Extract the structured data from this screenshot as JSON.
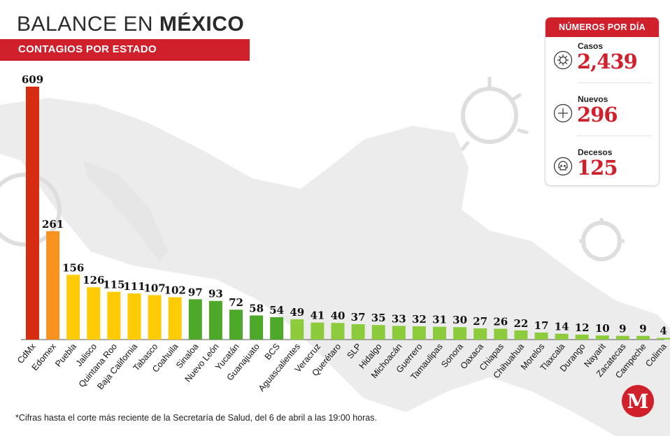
{
  "header": {
    "title_part1": "BALANCE EN ",
    "title_part2": "MÉXICO",
    "subtitle": "CONTAGIOS POR ESTADO"
  },
  "panel": {
    "title": "NÚMEROS POR DÍA",
    "stats": [
      {
        "label": "Casos",
        "value": "2,439",
        "icon": "virus-icon"
      },
      {
        "label": "Nuevos",
        "value": "296",
        "icon": "plus-circle-icon"
      },
      {
        "label": "Decesos",
        "value": "125",
        "icon": "skull-icon"
      }
    ]
  },
  "footnote": "*Cifras hasta el corte más reciente de la Secretaría de Salud, del 6 de abril a las 19:00 horas.",
  "logo": {
    "letter": "M"
  },
  "colors": {
    "brand_red": "#d0202b",
    "tier_dark_red": "#d62c10",
    "tier_orange": "#f7931e",
    "tier_yellow": "#ffcb05",
    "tier_dark_green": "#4ea82a",
    "tier_light_green": "#8ccc3c"
  },
  "chart_data": {
    "type": "bar",
    "title": "CONTAGIOS POR ESTADO",
    "categories": [
      "CdMx",
      "Edomex",
      "Puebla",
      "Jalisco",
      "Quintana Roo",
      "Baja California",
      "Tabasco",
      "Coahuila",
      "Sinaloa",
      "Nuevo León",
      "Yucatán",
      "Guanajuato",
      "BCS",
      "Aguascalientes",
      "Veracruz",
      "Querétaro",
      "SLP",
      "Hidalgo",
      "Michoacán",
      "Guerrero",
      "Tamaulipas",
      "Sonora",
      "Oaxaca",
      "Chiapas",
      "Chihuahua",
      "Morelos",
      "Tlaxcala",
      "Durango",
      "Nayarit",
      "Zacatecas",
      "Campeche",
      "Colima"
    ],
    "values": [
      609,
      261,
      156,
      126,
      115,
      111,
      107,
      102,
      97,
      93,
      72,
      58,
      54,
      49,
      41,
      40,
      37,
      35,
      33,
      32,
      31,
      30,
      27,
      26,
      22,
      17,
      14,
      12,
      10,
      9,
      9,
      4
    ],
    "value_labels": [
      "609",
      "261",
      "156",
      "126",
      "115",
      "111",
      "107",
      "102",
      "97",
      "93",
      "72",
      "58",
      "54",
      "49",
      "41",
      "40",
      "37",
      "35",
      "33",
      "32",
      "31",
      "30",
      "27",
      "26",
      "22",
      "17",
      "14",
      "12",
      "10",
      "9",
      "9",
      "4"
    ],
    "bar_colors": [
      "#d62c10",
      "#f7931e",
      "#ffcb05",
      "#ffcb05",
      "#ffcb05",
      "#ffcb05",
      "#ffcb05",
      "#ffcb05",
      "#4ea82a",
      "#4ea82a",
      "#4ea82a",
      "#4ea82a",
      "#4ea82a",
      "#8ccc3c",
      "#8ccc3c",
      "#8ccc3c",
      "#8ccc3c",
      "#8ccc3c",
      "#8ccc3c",
      "#8ccc3c",
      "#8ccc3c",
      "#8ccc3c",
      "#8ccc3c",
      "#8ccc3c",
      "#8ccc3c",
      "#8ccc3c",
      "#8ccc3c",
      "#8ccc3c",
      "#8ccc3c",
      "#8ccc3c",
      "#8ccc3c",
      "#8ccc3c"
    ],
    "ylim": [
      0,
      609
    ],
    "grid": false,
    "legend": "none"
  }
}
